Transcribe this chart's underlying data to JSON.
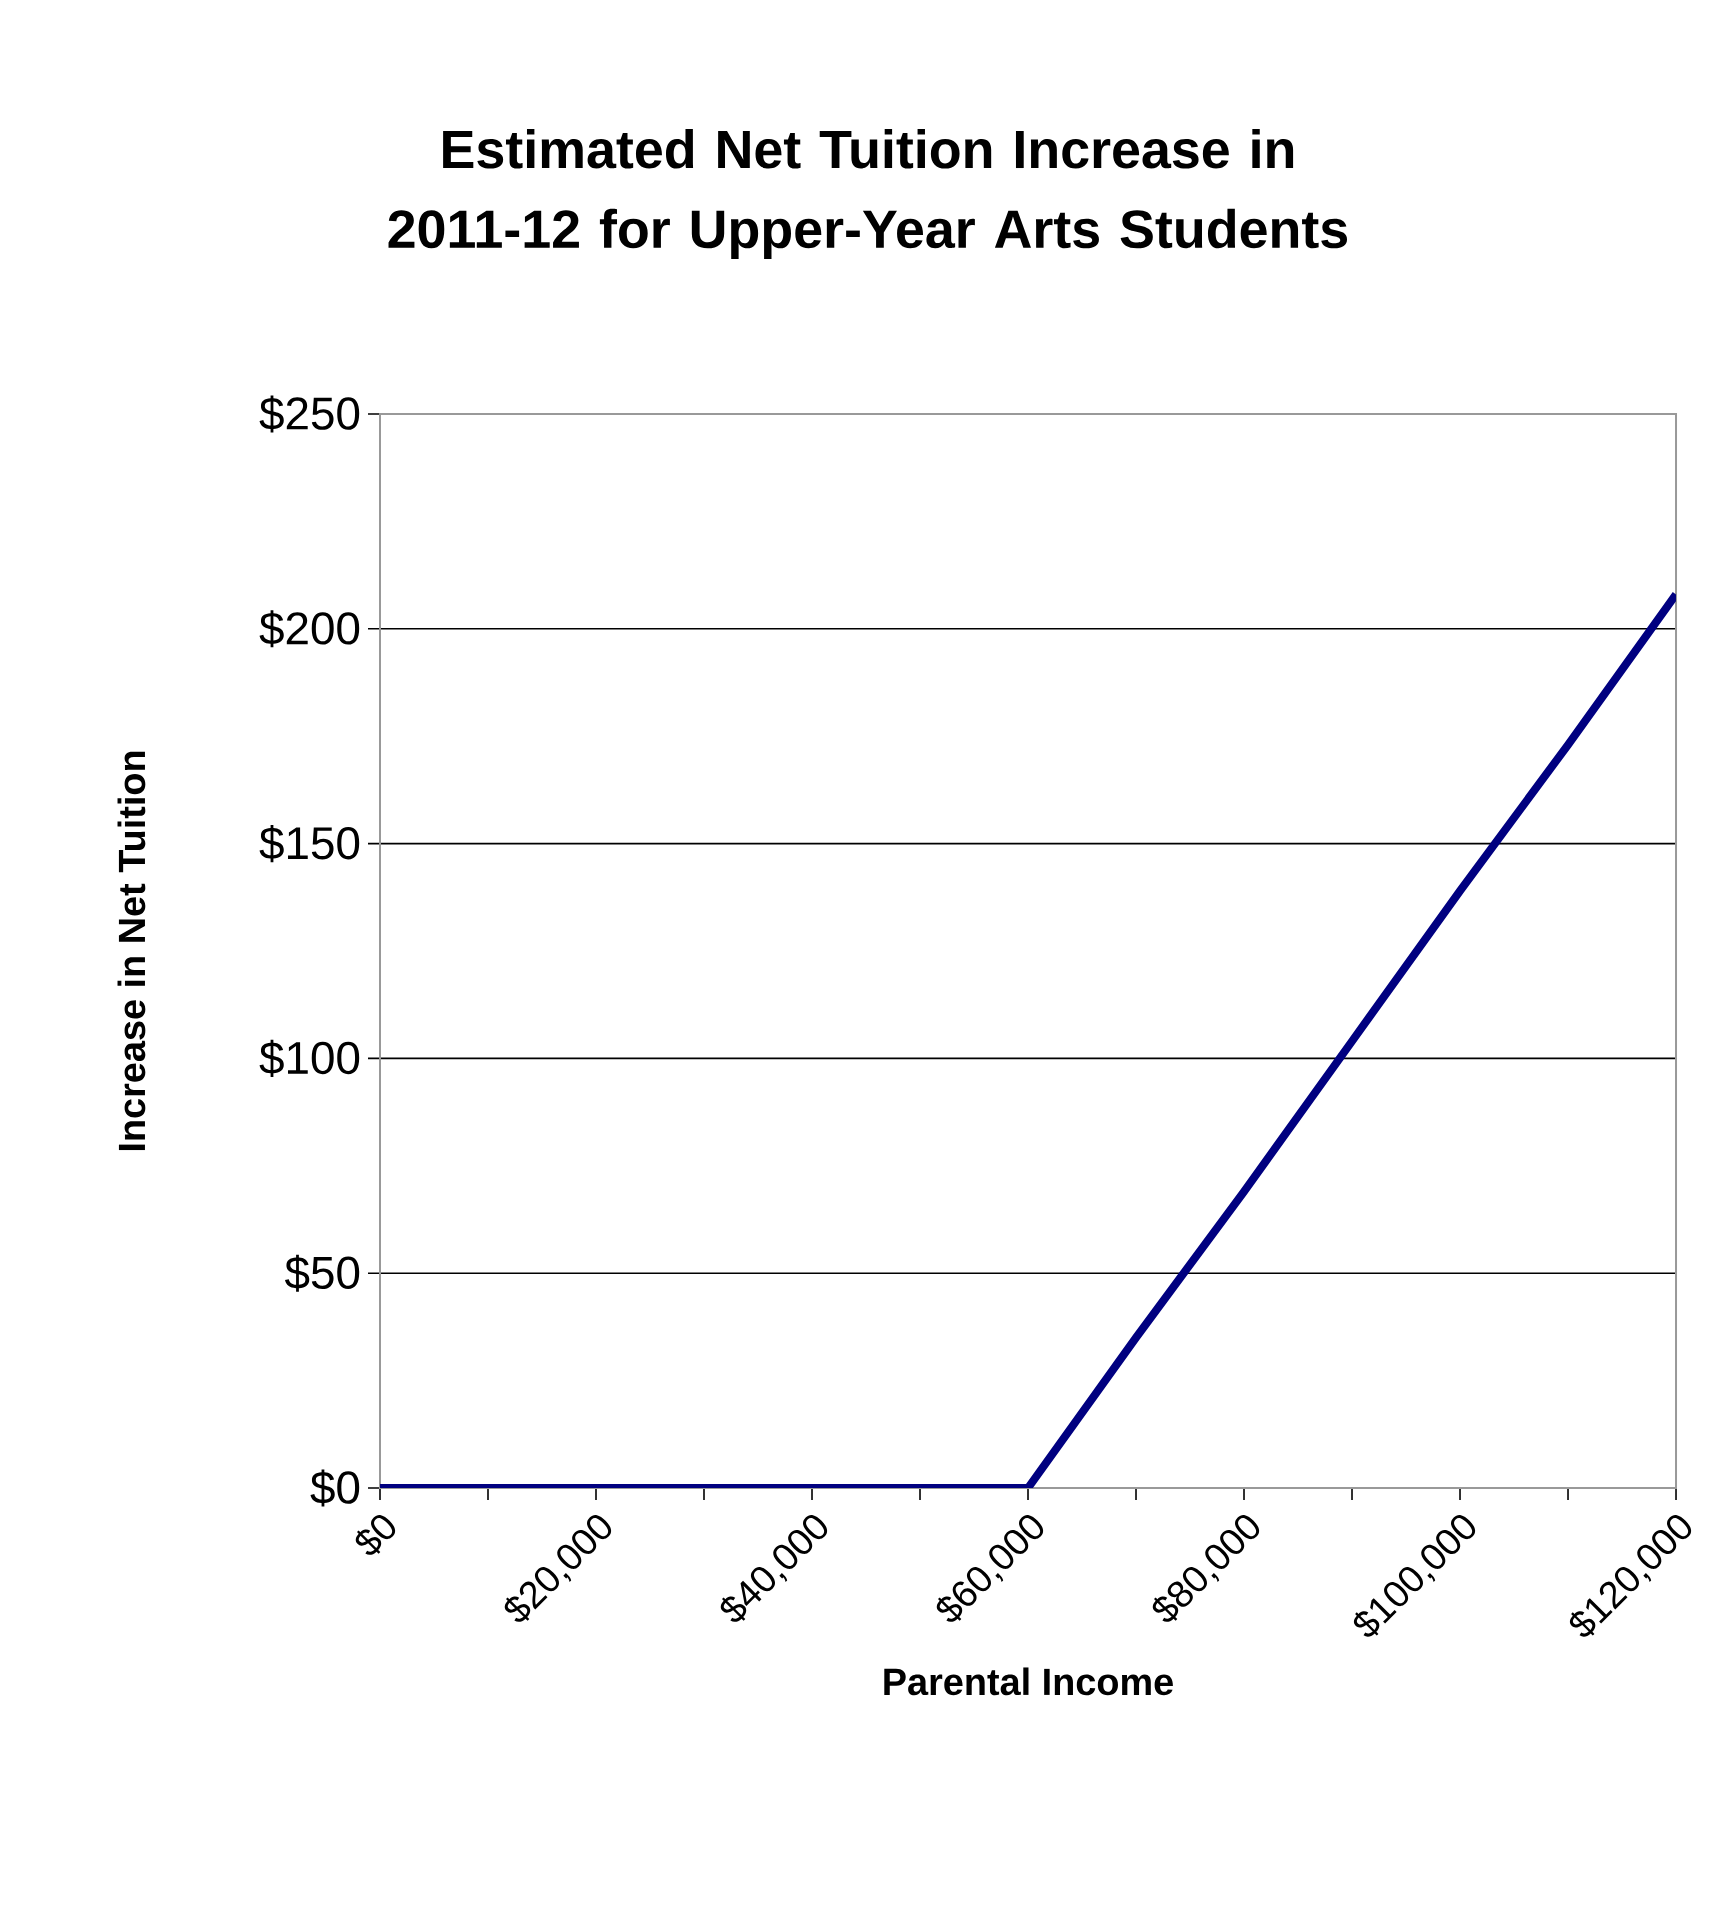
{
  "chart_data": {
    "type": "line",
    "title": "Estimated Net Tuition Increase in 2011-12 for Upper-Year Arts Students",
    "xlabel": "Parental Income",
    "ylabel": "Increase in Net Tuition",
    "x": [
      0,
      10000,
      20000,
      30000,
      40000,
      50000,
      60000,
      70000,
      80000,
      90000,
      100000,
      110000,
      120000
    ],
    "series": [
      {
        "color": "#000080",
        "values": [
          0,
          0,
          0,
          0,
          0,
          0,
          0,
          35,
          69,
          104,
          139,
          173,
          208
        ]
      }
    ],
    "xlim": [
      0,
      120000
    ],
    "ylim": [
      0,
      250
    ],
    "xticks": [
      {
        "value": 0,
        "label": "$0"
      },
      {
        "value": 10000,
        "label": null
      },
      {
        "value": 20000,
        "label": "$20,000"
      },
      {
        "value": 30000,
        "label": null
      },
      {
        "value": 40000,
        "label": "$40,000"
      },
      {
        "value": 50000,
        "label": null
      },
      {
        "value": 60000,
        "label": "$60,000"
      },
      {
        "value": 70000,
        "label": null
      },
      {
        "value": 80000,
        "label": "$80,000"
      },
      {
        "value": 90000,
        "label": null
      },
      {
        "value": 100000,
        "label": "$100,000"
      },
      {
        "value": 110000,
        "label": null
      },
      {
        "value": 120000,
        "label": "$120,000"
      }
    ],
    "yticks": [
      {
        "value": 0,
        "label": "$0"
      },
      {
        "value": 50,
        "label": "$50"
      },
      {
        "value": 100,
        "label": "$100"
      },
      {
        "value": 150,
        "label": "$150"
      },
      {
        "value": 200,
        "label": "$200"
      },
      {
        "value": 250,
        "label": "$250"
      }
    ],
    "grid": "y",
    "marker": "none",
    "line_style": "solid"
  }
}
